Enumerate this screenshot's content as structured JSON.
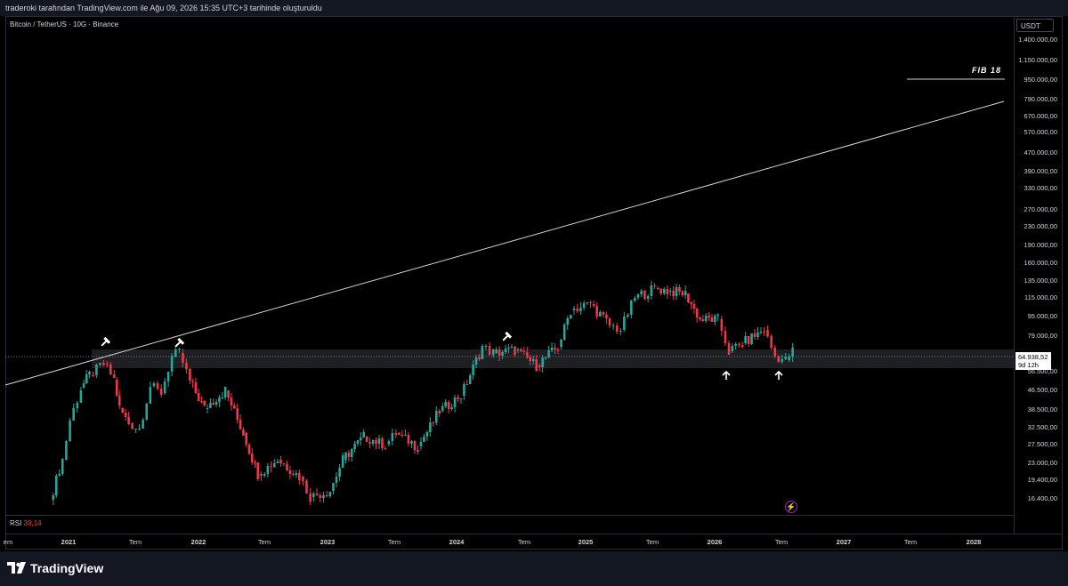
{
  "header": {
    "caption": "traderoki tarafından TradingView.com ile Ağu 09, 2026 15:35 UTC+3 tarihinde oluşturuldu"
  },
  "chart_title": "Bitcoin / TetherUS · 10G · Binance",
  "currency_button": "USDT",
  "price_axis": [
    "1.400.000,00",
    "1.150.000,00",
    "950.000,00",
    "790.000,00",
    "670.000,00",
    "570.000,00",
    "470.000,00",
    "390.000,00",
    "330.000,00",
    "270.000,00",
    "230.000,00",
    "190.000,00",
    "160.000,00",
    "135.000,00",
    "115.000,00",
    "95.000,00",
    "79.000,00",
    "56.500,00",
    "46.500,00",
    "38.500,00",
    "32.500,00",
    "27.500,00",
    "23.000,00",
    "19.400,00",
    "16.400,00"
  ],
  "current_price": {
    "value": "64.938,52",
    "countdown": "9d 12h"
  },
  "time_axis": [
    {
      "label": "em",
      "year": false
    },
    {
      "label": "2021",
      "year": true
    },
    {
      "label": "Tem",
      "year": false
    },
    {
      "label": "2022",
      "year": true
    },
    {
      "label": "Tem",
      "year": false
    },
    {
      "label": "2023",
      "year": true
    },
    {
      "label": "Tem",
      "year": false
    },
    {
      "label": "2024",
      "year": true
    },
    {
      "label": "Tem",
      "year": false
    },
    {
      "label": "2025",
      "year": true
    },
    {
      "label": "Tem",
      "year": false
    },
    {
      "label": "2026",
      "year": true
    },
    {
      "label": "Tem",
      "year": false
    },
    {
      "label": "2027",
      "year": true
    },
    {
      "label": "Tem",
      "year": false
    },
    {
      "label": "2028",
      "year": true
    }
  ],
  "annotation_fib": "FIB 18",
  "rsi": {
    "label": "RSI",
    "value": "39,14"
  },
  "brand": "TradingView",
  "colors": {
    "up": "#26a69a",
    "down": "#f23645",
    "background": "#000000",
    "panel": "#131722"
  },
  "chart_data": {
    "type": "candlestick",
    "symbol": "BTC/USDT",
    "interval": "10D",
    "log_scale": true,
    "ylim": [
      14500,
      1500000
    ],
    "x_range": [
      "2020-11",
      "2028-03"
    ],
    "current_price": 64938.52,
    "support_zone": [
      56500,
      72000
    ],
    "trendline": [
      {
        "date": "2020-11",
        "price": 46000
      },
      {
        "date": "2028-02",
        "price": 780000
      }
    ],
    "series": [
      {
        "date": "2020-11-10",
        "close": 16000
      },
      {
        "date": "2020-12-15",
        "close": 23500
      },
      {
        "date": "2021-01-05",
        "close": 34000
      },
      {
        "date": "2021-02-05",
        "close": 46000
      },
      {
        "date": "2021-03-01",
        "close": 52000
      },
      {
        "date": "2021-04-10",
        "close": 58000
      },
      {
        "date": "2021-05-10",
        "close": 50000
      },
      {
        "date": "2021-05-25",
        "close": 38000
      },
      {
        "date": "2021-06-20",
        "close": 33000
      },
      {
        "date": "2021-07-20",
        "close": 31500
      },
      {
        "date": "2021-08-20",
        "close": 47000
      },
      {
        "date": "2021-09-20",
        "close": 44000
      },
      {
        "date": "2021-10-20",
        "close": 62000
      },
      {
        "date": "2021-11-10",
        "close": 64000
      },
      {
        "date": "2021-12-10",
        "close": 49000
      },
      {
        "date": "2022-01-20",
        "close": 38000
      },
      {
        "date": "2022-03-20",
        "close": 45000
      },
      {
        "date": "2022-05-10",
        "close": 30000
      },
      {
        "date": "2022-06-20",
        "close": 20500
      },
      {
        "date": "2022-08-15",
        "close": 23500
      },
      {
        "date": "2022-10-15",
        "close": 20000
      },
      {
        "date": "2022-11-15",
        "close": 16500
      },
      {
        "date": "2023-01-10",
        "close": 17500
      },
      {
        "date": "2023-02-15",
        "close": 23500
      },
      {
        "date": "2023-04-15",
        "close": 29000
      },
      {
        "date": "2023-06-15",
        "close": 27000
      },
      {
        "date": "2023-07-15",
        "close": 30000
      },
      {
        "date": "2023-09-15",
        "close": 26500
      },
      {
        "date": "2023-11-15",
        "close": 37000
      },
      {
        "date": "2024-01-15",
        "close": 43000
      },
      {
        "date": "2024-03-15",
        "close": 68000
      },
      {
        "date": "2024-04-15",
        "close": 64000
      },
      {
        "date": "2024-06-15",
        "close": 66000
      },
      {
        "date": "2024-08-15",
        "close": 57000
      },
      {
        "date": "2024-10-15",
        "close": 68000
      },
      {
        "date": "2024-11-20",
        "close": 96000
      },
      {
        "date": "2025-01-15",
        "close": 102000
      },
      {
        "date": "2025-03-10",
        "close": 83000
      },
      {
        "date": "2025-04-10",
        "close": 80000
      },
      {
        "date": "2025-05-20",
        "close": 108000
      },
      {
        "date": "2025-07-15",
        "close": 118000
      },
      {
        "date": "2025-08-20",
        "close": 115000
      },
      {
        "date": "2025-10-10",
        "close": 112000
      },
      {
        "date": "2025-11-20",
        "close": 88000
      },
      {
        "date": "2026-01-10",
        "close": 88000
      },
      {
        "date": "2026-02-10",
        "close": 65000
      },
      {
        "date": "2026-03-20",
        "close": 70000
      },
      {
        "date": "2026-05-20",
        "close": 80000
      },
      {
        "date": "2026-06-20",
        "close": 62000
      },
      {
        "date": "2026-07-20",
        "close": 60000
      },
      {
        "date": "2026-08-09",
        "close": 64938.52
      }
    ]
  }
}
